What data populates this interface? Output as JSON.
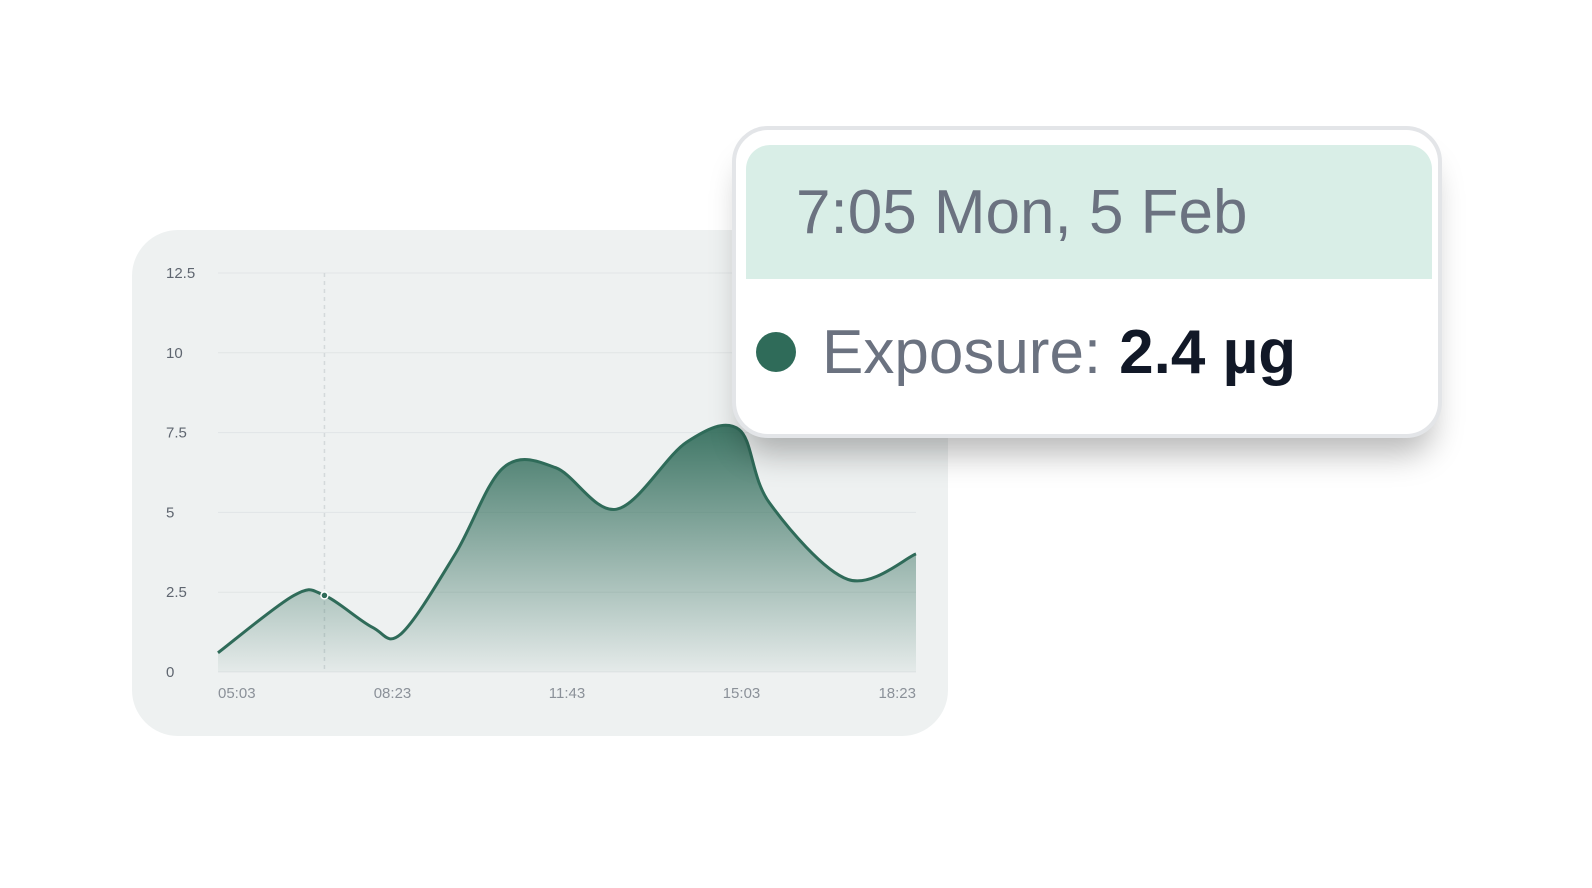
{
  "colors": {
    "series": "#2f6b59",
    "grid": "#e1e5e6",
    "hover_line": "#d4d9db",
    "tooltip_header_bg": "#d9eee7"
  },
  "chart_data": {
    "type": "area",
    "title": "",
    "xlabel": "",
    "ylabel": "",
    "ylim": [
      0,
      12.5
    ],
    "yticks": [
      "0",
      "2.5",
      "5",
      "7.5",
      "10",
      "12.5"
    ],
    "x_tick_labels": [
      "05:03",
      "08:23",
      "11:43",
      "15:03",
      "18:23"
    ],
    "x_range": [
      "05:03",
      "18:23"
    ],
    "grid": true,
    "series": [
      {
        "points": [
          [
            "05:03",
            0.6
          ],
          [
            "06:30",
            2.4
          ],
          [
            "07:05",
            2.4
          ],
          [
            "08:00",
            1.4
          ],
          [
            "08:33",
            1.2
          ],
          [
            "09:35",
            3.7
          ],
          [
            "10:30",
            6.4
          ],
          [
            "11:30",
            6.4
          ],
          [
            "12:40",
            5.1
          ],
          [
            "14:00",
            7.2
          ],
          [
            "15:00",
            7.6
          ],
          [
            "15:35",
            5.3
          ],
          [
            "17:05",
            2.9
          ],
          [
            "18:23",
            3.7
          ]
        ]
      }
    ],
    "hover_x": "07:05"
  },
  "tooltip": {
    "date": "7:05 Mon, 5 Feb",
    "series_label": "Exposure:",
    "series_value": "2.4 µg"
  }
}
